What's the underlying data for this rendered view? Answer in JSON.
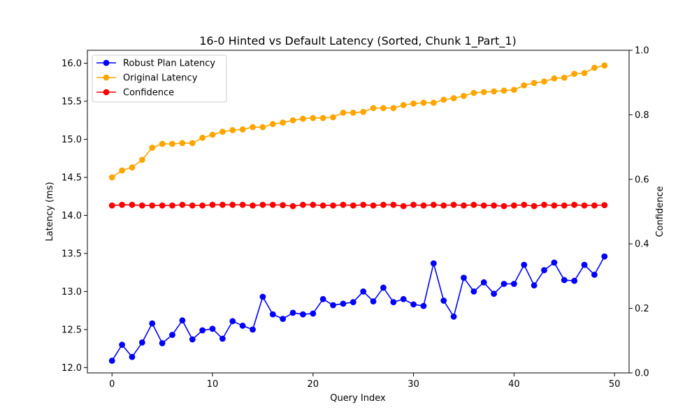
{
  "chart_data": {
    "type": "line",
    "title": "16-0 Hinted vs Default Latency (Sorted, Chunk 1_Part_1)",
    "xlabel": "Query Index",
    "ylabel": "Latency (ms)",
    "y2label": "Confidence",
    "xlim": [
      -2.45,
      51.45
    ],
    "ylim": [
      11.93,
      16.17
    ],
    "y2lim": [
      0.0,
      1.0
    ],
    "x_ticks": [
      0,
      10,
      20,
      30,
      40,
      50
    ],
    "y_ticks": [
      12.0,
      12.5,
      13.0,
      13.5,
      14.0,
      14.5,
      15.0,
      15.5,
      16.0
    ],
    "y2_ticks": [
      0.0,
      0.2,
      0.4,
      0.6,
      0.8,
      1.0
    ],
    "legend_position": "upper-left",
    "x": [
      0,
      1,
      2,
      3,
      4,
      5,
      6,
      7,
      8,
      9,
      10,
      11,
      12,
      13,
      14,
      15,
      16,
      17,
      18,
      19,
      20,
      21,
      22,
      23,
      24,
      25,
      26,
      27,
      28,
      29,
      30,
      31,
      32,
      33,
      34,
      35,
      36,
      37,
      38,
      39,
      40,
      41,
      42,
      43,
      44,
      45,
      46,
      47,
      48,
      49
    ],
    "series": [
      {
        "name": "Robust Plan Latency",
        "color": "#0000ff",
        "axis": "left",
        "values": [
          12.09,
          12.3,
          12.14,
          12.33,
          12.58,
          12.32,
          12.43,
          12.62,
          12.37,
          12.49,
          12.51,
          12.38,
          12.61,
          12.55,
          12.5,
          12.93,
          12.7,
          12.64,
          12.72,
          12.7,
          12.71,
          12.9,
          12.82,
          12.84,
          12.86,
          13.0,
          12.87,
          13.05,
          12.86,
          12.9,
          12.83,
          12.81,
          13.37,
          12.88,
          12.67,
          13.18,
          13.0,
          13.12,
          12.97,
          13.1,
          13.1,
          13.35,
          13.08,
          13.28,
          13.38,
          13.15,
          13.14,
          13.35,
          13.22,
          13.46
        ]
      },
      {
        "name": "Original Latency",
        "color": "#ffa500",
        "axis": "left",
        "values": [
          14.5,
          14.59,
          14.63,
          14.73,
          14.89,
          14.94,
          14.94,
          14.95,
          14.95,
          15.02,
          15.06,
          15.1,
          15.12,
          15.13,
          15.16,
          15.16,
          15.2,
          15.22,
          15.25,
          15.27,
          15.28,
          15.28,
          15.29,
          15.35,
          15.35,
          15.36,
          15.41,
          15.41,
          15.41,
          15.45,
          15.47,
          15.48,
          15.48,
          15.52,
          15.54,
          15.57,
          15.61,
          15.62,
          15.63,
          15.64,
          15.65,
          15.71,
          15.74,
          15.76,
          15.8,
          15.81,
          15.86,
          15.87,
          15.94,
          15.97
        ]
      },
      {
        "name": "Confidence",
        "color": "#ff0000",
        "axis": "right",
        "values": [
          0.519,
          0.521,
          0.521,
          0.519,
          0.519,
          0.519,
          0.519,
          0.521,
          0.519,
          0.519,
          0.521,
          0.521,
          0.521,
          0.521,
          0.519,
          0.521,
          0.521,
          0.52,
          0.517,
          0.521,
          0.521,
          0.519,
          0.519,
          0.521,
          0.519,
          0.521,
          0.519,
          0.521,
          0.521,
          0.517,
          0.521,
          0.519,
          0.521,
          0.519,
          0.521,
          0.519,
          0.521,
          0.519,
          0.519,
          0.517,
          0.519,
          0.521,
          0.517,
          0.521,
          0.519,
          0.519,
          0.521,
          0.519,
          0.519,
          0.52
        ]
      }
    ]
  }
}
